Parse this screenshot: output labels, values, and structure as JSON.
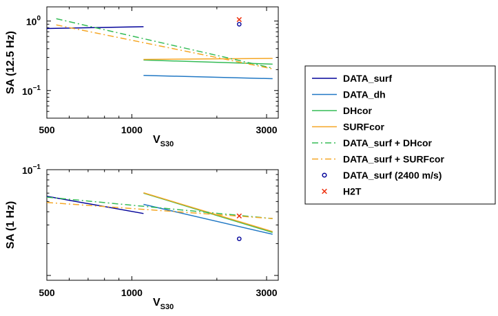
{
  "colors": {
    "DATA_surf": "#000099",
    "DATA_dh": "#1f77c4",
    "DHcor": "#33bb55",
    "SURFcor": "#f5a623",
    "DATA_surf + DHcor": "#33bb55",
    "DATA_surf + SURFcor": "#f5a623",
    "DATA_surf (2400 m/s)": "#000099",
    "H2T": "#ee3311"
  },
  "legend": [
    {
      "label": "DATA_surf",
      "style": "solid"
    },
    {
      "label": "DATA_dh",
      "style": "solid"
    },
    {
      "label": "DHcor",
      "style": "solid"
    },
    {
      "label": "SURFcor",
      "style": "solid"
    },
    {
      "label": "DATA_surf + DHcor",
      "style": "dashdot"
    },
    {
      "label": "DATA_surf + SURFcor",
      "style": "dashdot"
    },
    {
      "label": "DATA_surf (2400 m/s)",
      "style": "circle"
    },
    {
      "label": "H2T",
      "style": "cross"
    }
  ],
  "chart_data": [
    {
      "type": "line",
      "ylabel": "SA (12.5 Hz)",
      "xlabel": "V",
      "xlabel_sub": "S30",
      "xscale": "log",
      "yscale": "log",
      "xlim": [
        500,
        3300
      ],
      "ylim": [
        0.04,
        1.6
      ],
      "xticks": [
        500,
        1000,
        3000
      ],
      "xtick_labels": [
        "500",
        "1000",
        "3000"
      ],
      "ytick_labels": [
        {
          "value": 1,
          "base": "10",
          "exp": "0"
        },
        {
          "value": 0.1,
          "base": "10",
          "exp": "−1"
        }
      ],
      "series": [
        {
          "name": "DATA_surf",
          "x": [
            500,
            1100
          ],
          "y": [
            0.78,
            0.83
          ]
        },
        {
          "name": "DATA_dh",
          "x": [
            1100,
            3150
          ],
          "y": [
            0.165,
            0.148
          ]
        },
        {
          "name": "DHcor",
          "x": [
            1100,
            3150
          ],
          "y": [
            0.275,
            0.24
          ]
        },
        {
          "name": "SURFcor",
          "x": [
            1100,
            3150
          ],
          "y": [
            0.28,
            0.29
          ]
        },
        {
          "name": "DATA_surf + DHcor",
          "x": [
            540,
            3150
          ],
          "y": [
            1.08,
            0.21
          ]
        },
        {
          "name": "DATA_surf + SURFcor",
          "x": [
            540,
            3150
          ],
          "y": [
            0.88,
            0.205
          ]
        },
        {
          "name": "DATA_surf (2400 m/s)",
          "x": [
            2400
          ],
          "y": [
            0.9
          ]
        },
        {
          "name": "H2T",
          "x": [
            2400
          ],
          "y": [
            1.05
          ]
        }
      ]
    },
    {
      "type": "line",
      "ylabel": "SA (1 Hz)",
      "xlabel": "V",
      "xlabel_sub": "S30",
      "xscale": "log",
      "yscale": "log",
      "xlim": [
        500,
        3300
      ],
      "ylim": [
        0.009,
        0.1
      ],
      "xticks": [
        500,
        1000,
        3000
      ],
      "xtick_labels": [
        "500",
        "1000",
        "3000"
      ],
      "ytick_labels": [
        {
          "value": 0.1,
          "base": "10",
          "exp": "−1"
        }
      ],
      "series": [
        {
          "name": "DATA_surf",
          "x": [
            500,
            1100
          ],
          "y": [
            0.056,
            0.0385
          ]
        },
        {
          "name": "DATA_dh",
          "x": [
            1100,
            3150
          ],
          "y": [
            0.047,
            0.0245
          ]
        },
        {
          "name": "DHcor",
          "x": [
            1100,
            3150
          ],
          "y": [
            0.06,
            0.0255
          ]
        },
        {
          "name": "SURFcor",
          "x": [
            1100,
            3150
          ],
          "y": [
            0.0605,
            0.026
          ]
        },
        {
          "name": "DATA_surf + DHcor",
          "x": [
            500,
            3150
          ],
          "y": [
            0.055,
            0.0345
          ]
        },
        {
          "name": "DATA_surf + SURFcor",
          "x": [
            500,
            3150
          ],
          "y": [
            0.049,
            0.0345
          ]
        },
        {
          "name": "DATA_surf (2400 m/s)",
          "x": [
            2400
          ],
          "y": [
            0.0222
          ]
        },
        {
          "name": "H2T",
          "x": [
            2400
          ],
          "y": [
            0.0365
          ]
        }
      ]
    }
  ]
}
